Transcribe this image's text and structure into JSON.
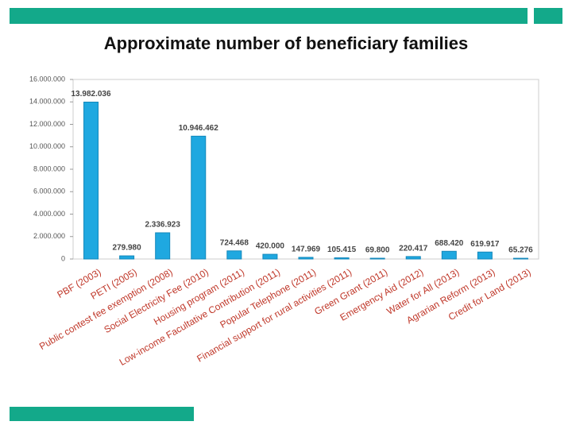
{
  "chart_data": {
    "type": "bar",
    "title": "Approximate number of beneficiary families",
    "categories": [
      "PBF (2003)",
      "PETI (2005)",
      "Public contest fee exemption (2008)",
      "Social Electricity Fee (2010)",
      "Housing program (2011)",
      "Low-income Facultative Contribution (2011)",
      "Popular Telephone (2011)",
      "Financial support for rural activities (2011)",
      "Green Grant (2011)",
      "Emergency Aid (2012)",
      "Water for All (2013)",
      "Agrarian Reform (2013)",
      "Credit for Land (2013)"
    ],
    "values": [
      13982036,
      279980,
      2336923,
      10946462,
      724468,
      420000,
      147969,
      105415,
      69800,
      220417,
      688420,
      619917,
      65276
    ],
    "value_labels": [
      "13.982.036",
      "279.980",
      "2.336.923",
      "10.946.462",
      "724.468",
      "420.000",
      "147.969",
      "105.415",
      "69.800",
      "220.417",
      "688.420",
      "619.917",
      "65.276"
    ],
    "color": "#1fa8e0",
    "ylim": [
      0,
      16000000
    ],
    "yticks": [
      0,
      {
        "value": 2000000,
        "label": "2.000.000"
      },
      {
        "value": 4000000,
        "label": "4.000.000"
      },
      {
        "value": 6000000,
        "label": "6.000.000"
      },
      {
        "value": 8000000,
        "label": "8.000.000"
      },
      {
        "value": 10000000,
        "label": "10.000.000"
      },
      {
        "value": 12000000,
        "label": "12.000.000"
      },
      {
        "value": 14000000,
        "label": "14.000.000"
      },
      {
        "value": 16000000,
        "label": "16.000.000"
      }
    ],
    "grid": false
  }
}
